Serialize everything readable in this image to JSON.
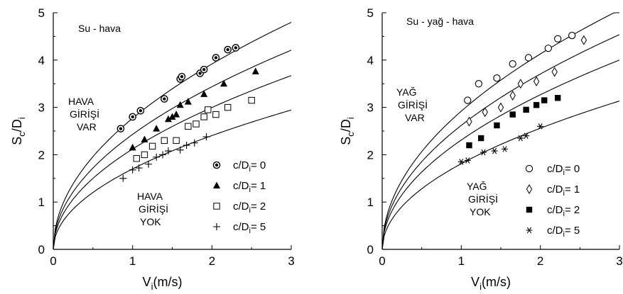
{
  "chart_data": [
    {
      "type": "scatter",
      "title": "Su - hava",
      "xlabel": "V",
      "xlabel_sub": "i",
      "xlabel_unit": "(m/s)",
      "ylabel": "S",
      "ylabel_sub1": "c",
      "ylabel_mid": "/D",
      "ylabel_sub2": "i",
      "xlim": [
        0,
        3
      ],
      "ylim": [
        0,
        5
      ],
      "xticks": [
        "0",
        "1",
        "2",
        "3"
      ],
      "yticks": [
        "0",
        "1",
        "2",
        "3",
        "4",
        "5"
      ],
      "grid": false,
      "legend_position": "right-center",
      "annotations": [
        {
          "lines": [
            "HAVA",
            "GİRİŞİ",
            "VAR"
          ]
        },
        {
          "lines": [
            "HAVA",
            "GİRİŞİ",
            "YOK"
          ]
        }
      ],
      "series": [
        {
          "name": "c/Di= 0",
          "legend_prefix": "c/D",
          "legend_sub": "i",
          "legend_suffix": "= 0",
          "marker": "circle-dot",
          "x": [
            0.85,
            1.0,
            1.1,
            1.4,
            1.6,
            1.62,
            1.85,
            1.9,
            2.05,
            2.2,
            2.3
          ],
          "y": [
            2.55,
            2.8,
            2.93,
            3.18,
            3.6,
            3.65,
            3.72,
            3.8,
            4.05,
            4.22,
            4.26
          ],
          "fit": {
            "a": 2.77,
            "b": 0.5
          }
        },
        {
          "name": "c/Di= 1",
          "legend_prefix": "c/D",
          "legend_sub": "i",
          "legend_suffix": "= 1",
          "marker": "triangle-filled",
          "x": [
            1.0,
            1.15,
            1.3,
            1.45,
            1.5,
            1.55,
            1.6,
            1.7,
            1.9,
            2.15,
            2.55
          ],
          "y": [
            2.15,
            2.32,
            2.55,
            2.75,
            2.8,
            2.85,
            3.05,
            3.12,
            3.28,
            3.5,
            3.76
          ],
          "fit": {
            "a": 2.43,
            "b": 0.5
          }
        },
        {
          "name": "c/Di= 2",
          "legend_prefix": "c/D",
          "legend_sub": "i",
          "legend_suffix": "= 2",
          "marker": "square-open",
          "x": [
            1.05,
            1.15,
            1.25,
            1.4,
            1.55,
            1.7,
            1.8,
            1.9,
            1.95,
            2.05,
            2.2,
            2.5
          ],
          "y": [
            1.92,
            2.0,
            2.18,
            2.3,
            2.3,
            2.6,
            2.65,
            2.8,
            2.95,
            2.85,
            3.0,
            3.15
          ],
          "fit": {
            "a": 2.12,
            "b": 0.5
          }
        },
        {
          "name": "c/Di= 5",
          "legend_prefix": "c/D",
          "legend_sub": "i",
          "legend_suffix": "= 5",
          "marker": "plus",
          "x": [
            0.88,
            1.0,
            1.08,
            1.2,
            1.3,
            1.38,
            1.45,
            1.6,
            1.68,
            1.78,
            1.93
          ],
          "y": [
            1.5,
            1.68,
            1.72,
            1.8,
            1.95,
            2.0,
            2.08,
            2.1,
            2.2,
            2.25,
            2.38
          ],
          "fit": {
            "a": 1.7,
            "b": 0.5
          }
        }
      ]
    },
    {
      "type": "scatter",
      "title": "Su - yağ - hava",
      "xlabel": "V",
      "xlabel_sub": "i",
      "xlabel_unit": "(m/s)",
      "ylabel": "S",
      "ylabel_sub1": "c",
      "ylabel_mid": "/D",
      "ylabel_sub2": "i",
      "xlim": [
        0,
        3
      ],
      "ylim": [
        0,
        5
      ],
      "xticks": [
        "0",
        "1",
        "2",
        "3"
      ],
      "yticks": [
        "0",
        "1",
        "2",
        "3",
        "4",
        "5"
      ],
      "grid": false,
      "legend_position": "right-center",
      "annotations": [
        {
          "lines": [
            "YAĞ",
            "GİRİŞİ",
            "VAR"
          ]
        },
        {
          "lines": [
            "YAĞ",
            "GİRİŞİ",
            "YOK"
          ]
        }
      ],
      "series": [
        {
          "name": "c/Di= 0",
          "legend_prefix": "c/D",
          "legend_sub": "i",
          "legend_suffix": "= 0",
          "marker": "circle-open",
          "x": [
            1.08,
            1.22,
            1.45,
            1.65,
            1.85,
            2.1,
            2.22,
            2.4
          ],
          "y": [
            3.15,
            3.5,
            3.62,
            3.92,
            4.05,
            4.25,
            4.45,
            4.52
          ],
          "fit": {
            "a": 2.92,
            "b": 0.5
          }
        },
        {
          "name": "c/Di= 1",
          "legend_prefix": "c/D",
          "legend_sub": "i",
          "legend_suffix": "= 1",
          "marker": "diamond-open",
          "x": [
            1.1,
            1.3,
            1.5,
            1.65,
            1.75,
            1.95,
            2.18,
            2.55
          ],
          "y": [
            2.7,
            2.9,
            3.0,
            3.25,
            3.5,
            3.55,
            3.75,
            4.42
          ],
          "fit": {
            "a": 2.62,
            "b": 0.5
          }
        },
        {
          "name": "c/Di= 2",
          "legend_prefix": "c/D",
          "legend_sub": "i",
          "legend_suffix": "= 2",
          "marker": "square-filled",
          "x": [
            1.1,
            1.25,
            1.45,
            1.65,
            1.82,
            1.95,
            2.05,
            2.22
          ],
          "y": [
            2.2,
            2.35,
            2.62,
            2.85,
            2.95,
            3.05,
            3.15,
            3.2
          ],
          "fit": {
            "a": 2.31,
            "b": 0.5
          }
        },
        {
          "name": "c/Di= 5",
          "legend_prefix": "c/D",
          "legend_sub": "i",
          "legend_suffix": "= 5",
          "marker": "asterisk",
          "x": [
            1.0,
            1.08,
            1.28,
            1.42,
            1.55,
            1.75,
            1.82,
            2.0
          ],
          "y": [
            1.85,
            1.88,
            2.05,
            2.08,
            2.12,
            2.35,
            2.4,
            2.6
          ],
          "fit": {
            "a": 1.81,
            "b": 0.5
          }
        }
      ]
    }
  ]
}
